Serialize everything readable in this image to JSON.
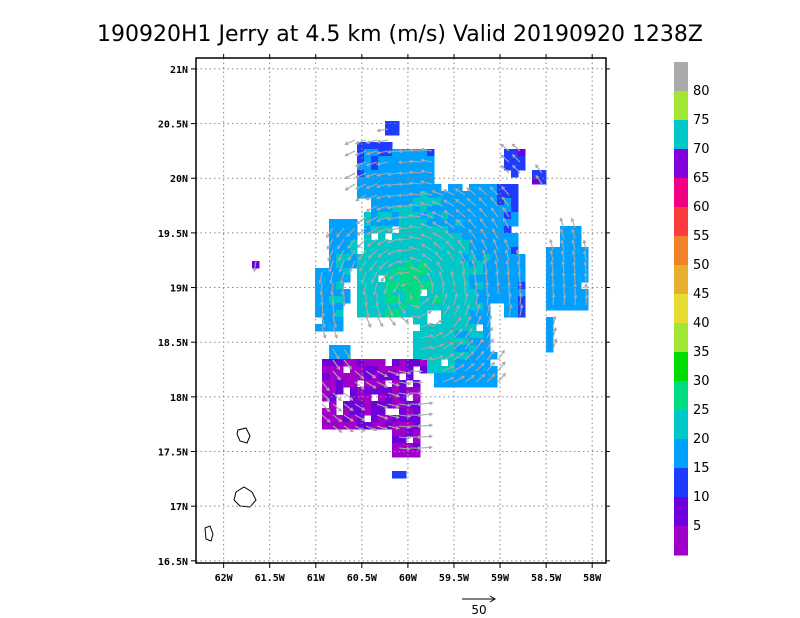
{
  "chart_data": {
    "type": "heatmap",
    "title": "190920H1 Jerry at 4.5 km (m/s) Valid 20190920  1238Z",
    "xlim": [
      -62.3,
      -57.85
    ],
    "ylim": [
      16.48,
      21.1
    ],
    "x_ticks": [
      -62,
      -61.5,
      -61,
      -60.5,
      -60,
      -59.5,
      -59,
      -58.5,
      -58
    ],
    "x_tick_labels": [
      "62W",
      "61.5W",
      "61W",
      "60.5W",
      "60W",
      "59.5W",
      "59W",
      "58.5W",
      "58W"
    ],
    "y_ticks": [
      16.5,
      17,
      17.5,
      18,
      18.5,
      19,
      19.5,
      20,
      20.5,
      21
    ],
    "y_tick_labels": [
      "16.5N",
      "17N",
      "17.5N",
      "18N",
      "18.5N",
      "19N",
      "19.5N",
      "20N",
      "20.5N",
      "21N"
    ],
    "grid": true,
    "colorbar": {
      "labels": [
        "5",
        "10",
        "15",
        "20",
        "25",
        "30",
        "35",
        "40",
        "45",
        "50",
        "55",
        "60",
        "65",
        "70",
        "75",
        "80"
      ],
      "colors": [
        "#a000c8",
        "#6e00dc",
        "#1e3cff",
        "#00a0ff",
        "#00c8c8",
        "#00dc82",
        "#00dc00",
        "#a0e632",
        "#e6dc32",
        "#e6af2d",
        "#f08228",
        "#fa3c3c",
        "#f00082",
        "#8200dc",
        "#00c8c8",
        "#a0e632",
        "#aaaaaa"
      ]
    },
    "wind_center": {
      "lon": -59.95,
      "lat": 18.95,
      "max_speed": 27
    },
    "reference_vector": {
      "label": "50",
      "value": 50
    }
  }
}
